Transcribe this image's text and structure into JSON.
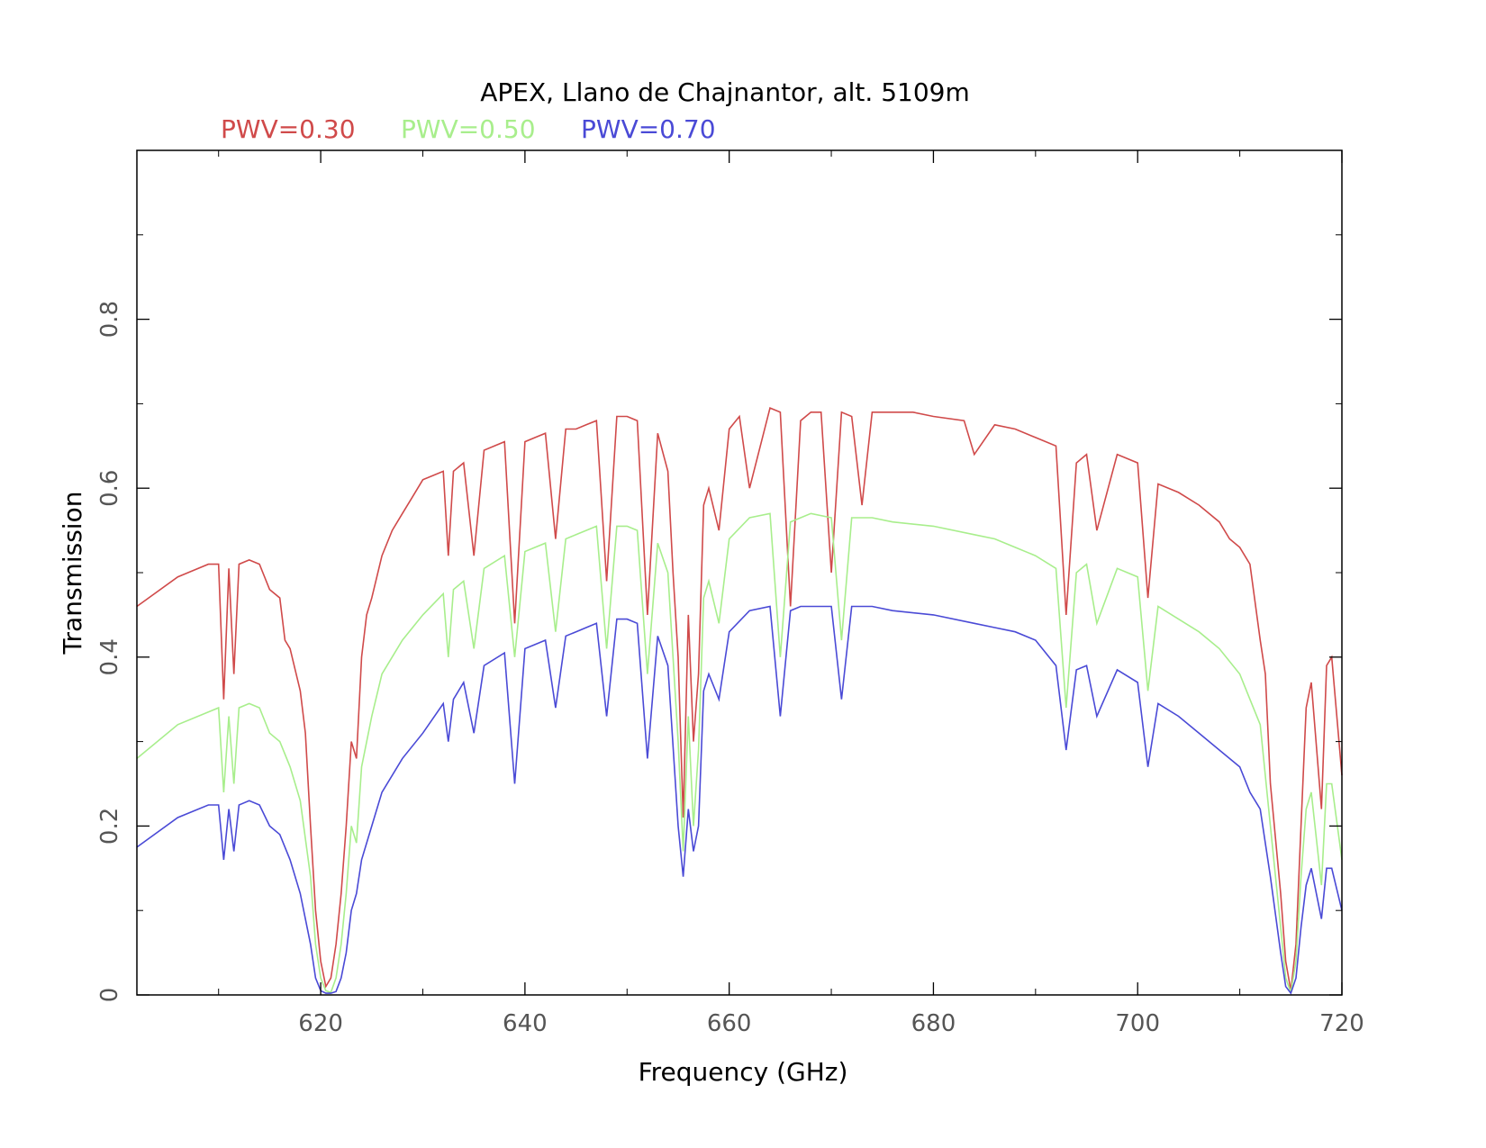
{
  "chart_data": {
    "type": "line",
    "title": "APEX, Llano de Chajnantor, alt. 5109m",
    "xlabel": "Frequency (GHz)",
    "ylabel": "Transmission",
    "xlim": [
      602,
      720
    ],
    "ylim": [
      0,
      1
    ],
    "x_ticks": [
      620,
      640,
      660,
      680,
      700,
      720
    ],
    "x_tick_labels": [
      "620",
      "640",
      "660",
      "680",
      "700",
      "720"
    ],
    "y_ticks": [
      0,
      0.2,
      0.4,
      0.6,
      0.8
    ],
    "y_tick_labels": [
      "0",
      "0.2",
      "0.4",
      "0.6",
      "0.8"
    ],
    "grid": false,
    "legend_position": "top-left, above plot",
    "series": [
      {
        "name": "PWV=0.30",
        "color": "#d04a4a",
        "x": [
          602,
          606,
          609,
          610,
          610.5,
          611,
          611.5,
          612,
          613,
          614,
          615,
          616,
          616.5,
          617,
          618,
          618.5,
          619,
          619.5,
          620,
          620.5,
          621,
          621.5,
          622,
          622.5,
          623,
          623.5,
          624,
          624.5,
          625,
          626,
          627,
          628,
          629,
          630,
          631,
          632,
          632.5,
          633,
          634,
          635,
          636,
          638,
          639,
          640,
          641,
          642,
          643,
          644,
          645,
          646,
          647,
          648,
          649,
          650,
          651,
          652,
          653,
          654,
          654.5,
          655,
          655.5,
          656,
          656.5,
          657,
          657.5,
          658,
          659,
          660,
          661,
          662,
          664,
          665,
          666,
          667,
          668,
          669,
          670,
          671,
          672,
          673,
          674,
          676,
          678,
          680,
          683,
          684,
          686,
          688,
          690,
          692,
          693,
          694,
          695,
          696,
          698,
          700,
          701,
          702,
          704,
          706,
          708,
          709,
          710,
          711,
          712,
          712.5,
          713,
          714,
          714.5,
          715,
          715.5,
          716,
          716.5,
          717,
          718,
          718.5,
          719,
          720
        ],
        "y": [
          0.46,
          0.495,
          0.51,
          0.51,
          0.35,
          0.505,
          0.38,
          0.51,
          0.515,
          0.51,
          0.48,
          0.47,
          0.42,
          0.41,
          0.36,
          0.31,
          0.2,
          0.1,
          0.04,
          0.01,
          0.02,
          0.06,
          0.12,
          0.2,
          0.3,
          0.28,
          0.4,
          0.45,
          0.47,
          0.52,
          0.55,
          0.57,
          0.59,
          0.61,
          0.615,
          0.62,
          0.52,
          0.62,
          0.63,
          0.52,
          0.645,
          0.655,
          0.44,
          0.655,
          0.66,
          0.665,
          0.54,
          0.67,
          0.67,
          0.675,
          0.68,
          0.49,
          0.685,
          0.685,
          0.68,
          0.45,
          0.665,
          0.62,
          0.5,
          0.4,
          0.21,
          0.45,
          0.3,
          0.38,
          0.58,
          0.6,
          0.55,
          0.67,
          0.685,
          0.6,
          0.695,
          0.69,
          0.46,
          0.68,
          0.69,
          0.69,
          0.5,
          0.69,
          0.685,
          0.58,
          0.69,
          0.69,
          0.69,
          0.685,
          0.68,
          0.64,
          0.675,
          0.67,
          0.66,
          0.65,
          0.45,
          0.63,
          0.64,
          0.55,
          0.64,
          0.63,
          0.47,
          0.605,
          0.595,
          0.58,
          0.56,
          0.54,
          0.53,
          0.51,
          0.42,
          0.38,
          0.25,
          0.12,
          0.04,
          0.005,
          0.06,
          0.2,
          0.34,
          0.37,
          0.22,
          0.39,
          0.4,
          0.26
        ]
      },
      {
        "name": "PWV=0.50",
        "color": "#a8ee8c",
        "x": [
          602,
          606,
          609,
          610,
          610.5,
          611,
          611.5,
          612,
          613,
          614,
          615,
          616,
          617,
          618,
          619,
          619.5,
          620,
          620.5,
          621,
          621.5,
          622,
          622.5,
          623,
          623.5,
          624,
          625,
          626,
          628,
          630,
          632,
          632.5,
          633,
          634,
          635,
          636,
          638,
          639,
          640,
          641,
          642,
          643,
          644,
          645,
          646,
          647,
          648,
          649,
          650,
          651,
          652,
          653,
          654,
          655,
          655.5,
          656,
          656.5,
          657,
          657.5,
          658,
          659,
          660,
          662,
          664,
          665,
          666,
          667,
          668,
          670,
          671,
          672,
          674,
          676,
          680,
          684,
          686,
          688,
          690,
          692,
          693,
          694,
          695,
          696,
          698,
          700,
          701,
          702,
          704,
          706,
          708,
          710,
          711,
          712,
          713,
          714,
          714.5,
          715,
          715.5,
          716,
          716.5,
          717,
          718,
          718.5,
          719,
          720
        ],
        "y": [
          0.28,
          0.32,
          0.335,
          0.34,
          0.24,
          0.33,
          0.25,
          0.34,
          0.345,
          0.34,
          0.31,
          0.3,
          0.27,
          0.23,
          0.14,
          0.06,
          0.02,
          0.005,
          0.003,
          0.02,
          0.06,
          0.12,
          0.2,
          0.18,
          0.27,
          0.33,
          0.38,
          0.42,
          0.45,
          0.475,
          0.4,
          0.48,
          0.49,
          0.41,
          0.505,
          0.52,
          0.4,
          0.525,
          0.53,
          0.535,
          0.43,
          0.54,
          0.545,
          0.55,
          0.555,
          0.41,
          0.555,
          0.555,
          0.55,
          0.38,
          0.535,
          0.5,
          0.3,
          0.17,
          0.33,
          0.2,
          0.29,
          0.47,
          0.49,
          0.44,
          0.54,
          0.565,
          0.57,
          0.4,
          0.56,
          0.565,
          0.57,
          0.565,
          0.42,
          0.565,
          0.565,
          0.56,
          0.555,
          0.545,
          0.54,
          0.53,
          0.52,
          0.505,
          0.34,
          0.5,
          0.51,
          0.44,
          0.505,
          0.495,
          0.36,
          0.46,
          0.445,
          0.43,
          0.41,
          0.38,
          0.35,
          0.32,
          0.2,
          0.08,
          0.02,
          0.003,
          0.04,
          0.14,
          0.22,
          0.24,
          0.13,
          0.25,
          0.25,
          0.16
        ]
      },
      {
        "name": "PWV=0.70",
        "color": "#4a4ad6",
        "x": [
          602,
          606,
          609,
          610,
          610.5,
          611,
          611.5,
          612,
          613,
          614,
          615,
          616,
          617,
          618,
          619,
          619.5,
          620,
          620.5,
          621,
          621.5,
          622,
          622.5,
          623,
          623.5,
          624,
          625,
          626,
          628,
          630,
          632,
          632.5,
          633,
          634,
          635,
          636,
          638,
          639,
          640,
          641,
          642,
          643,
          644,
          645,
          646,
          647,
          648,
          649,
          650,
          651,
          652,
          653,
          654,
          655,
          655.5,
          656,
          656.5,
          657,
          657.5,
          658,
          659,
          660,
          662,
          664,
          665,
          666,
          667,
          668,
          670,
          671,
          672,
          674,
          676,
          680,
          684,
          686,
          688,
          690,
          692,
          693,
          694,
          695,
          696,
          698,
          700,
          701,
          702,
          704,
          706,
          708,
          710,
          711,
          712,
          713,
          714,
          714.5,
          715,
          715.5,
          716,
          716.5,
          717,
          718,
          718.5,
          719,
          720
        ],
        "y": [
          0.175,
          0.21,
          0.225,
          0.225,
          0.16,
          0.22,
          0.17,
          0.225,
          0.23,
          0.225,
          0.2,
          0.19,
          0.16,
          0.12,
          0.06,
          0.02,
          0.005,
          0.002,
          0.002,
          0.004,
          0.02,
          0.05,
          0.1,
          0.12,
          0.16,
          0.2,
          0.24,
          0.28,
          0.31,
          0.345,
          0.3,
          0.35,
          0.37,
          0.31,
          0.39,
          0.405,
          0.25,
          0.41,
          0.415,
          0.42,
          0.34,
          0.425,
          0.43,
          0.435,
          0.44,
          0.33,
          0.445,
          0.445,
          0.44,
          0.28,
          0.425,
          0.39,
          0.2,
          0.14,
          0.22,
          0.17,
          0.2,
          0.36,
          0.38,
          0.35,
          0.43,
          0.455,
          0.46,
          0.33,
          0.455,
          0.46,
          0.46,
          0.46,
          0.35,
          0.46,
          0.46,
          0.455,
          0.45,
          0.44,
          0.435,
          0.43,
          0.42,
          0.39,
          0.29,
          0.385,
          0.39,
          0.33,
          0.385,
          0.37,
          0.27,
          0.345,
          0.33,
          0.31,
          0.29,
          0.27,
          0.24,
          0.22,
          0.14,
          0.05,
          0.01,
          0.002,
          0.02,
          0.08,
          0.13,
          0.15,
          0.09,
          0.15,
          0.15,
          0.1
        ]
      }
    ]
  }
}
